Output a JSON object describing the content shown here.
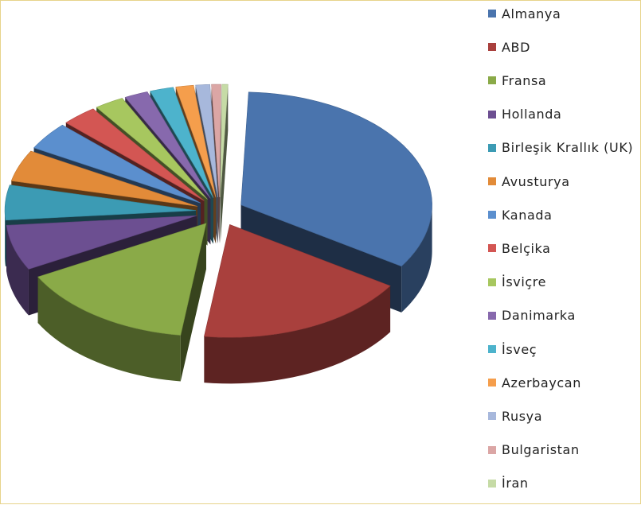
{
  "chart_data": {
    "type": "pie",
    "title": "",
    "legend_position": "right",
    "categories": [
      "Almanya",
      "ABD",
      "Fransa",
      "Hollanda",
      "Birleşik Krallık (UK)",
      "Avusturya",
      "Kanada",
      "Belçika",
      "İsviçre",
      "Danimarka",
      "İsveç",
      "Azerbaycan",
      "Rusya",
      "Bulgaristan",
      "İran"
    ],
    "values": [
      33.5,
      18.0,
      15.0,
      6.5,
      5.0,
      4.5,
      4.0,
      3.0,
      2.5,
      2.0,
      2.0,
      1.5,
      1.2,
      0.8,
      0.5
    ],
    "colors": [
      "#4a74ad",
      "#a9403d",
      "#8aaa48",
      "#6c4f91",
      "#3c9bb4",
      "#e28b39",
      "#5b8fce",
      "#d35653",
      "#a7c75f",
      "#8769ad",
      "#4db3cc",
      "#f59e4c",
      "#a7b8dc",
      "#dba6a5",
      "#c6dba6"
    ]
  }
}
